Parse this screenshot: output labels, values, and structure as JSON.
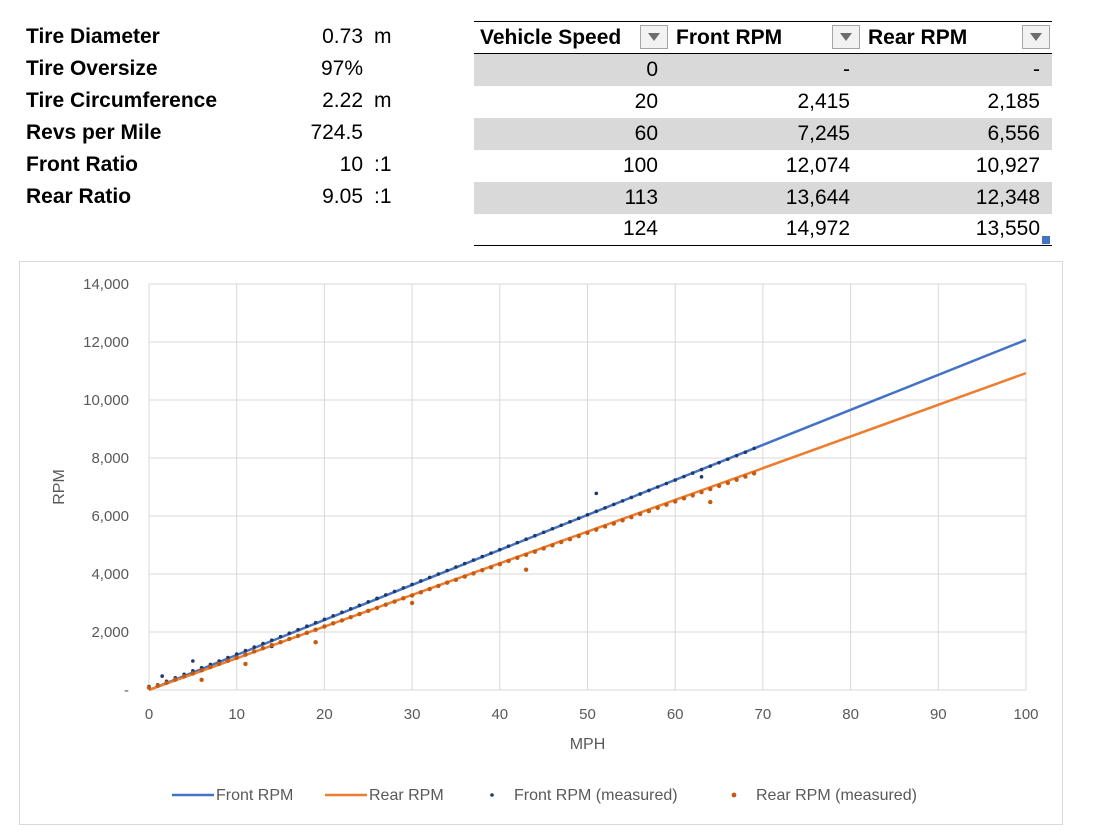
{
  "parameters": [
    {
      "label": "Tire Diameter",
      "value": "0.73",
      "unit": "m"
    },
    {
      "label": "Tire Oversize",
      "value": "97%",
      "unit": ""
    },
    {
      "label": "Tire Circumference",
      "value": "2.22",
      "unit": "m"
    },
    {
      "label": "Revs per Mile",
      "value": "724.5",
      "unit": ""
    },
    {
      "label": "Front Ratio",
      "value": "10",
      "unit": ":1"
    },
    {
      "label": "Rear Ratio",
      "value": "9.05",
      "unit": ":1"
    }
  ],
  "rpm_table": {
    "headers": [
      "Vehicle Speed",
      "Front RPM",
      "Rear RPM"
    ],
    "rows": [
      [
        "0",
        "-",
        "-"
      ],
      [
        "20",
        "2,415",
        "2,185"
      ],
      [
        "60",
        "7,245",
        "6,556"
      ],
      [
        "100",
        "12,074",
        "10,927"
      ],
      [
        "113",
        "13,644",
        "12,348"
      ],
      [
        "124",
        "14,972",
        "13,550"
      ]
    ]
  },
  "colors": {
    "front": "#4472c4",
    "rear": "#ed7d31",
    "front_measured": "#203864",
    "rear_measured": "#c55a11",
    "grid": "#d9d9d9",
    "band": "#d9d9d9"
  },
  "chart_data": {
    "type": "scatter",
    "xlabel": "MPH",
    "ylabel": "RPM",
    "xlim": [
      0,
      100
    ],
    "ylim": [
      0,
      14000
    ],
    "x_ticks": [
      0,
      10,
      20,
      30,
      40,
      50,
      60,
      70,
      80,
      90,
      100
    ],
    "x_tick_labels": [
      "0",
      "10",
      "20",
      "30",
      "40",
      "50",
      "60",
      "70",
      "80",
      "90",
      "100"
    ],
    "y_ticks": [
      0,
      2000,
      4000,
      6000,
      8000,
      10000,
      12000,
      14000
    ],
    "y_tick_labels": [
      "-",
      "2,000",
      "4,000",
      "6,000",
      "8,000",
      "10,000",
      "12,000",
      "14,000"
    ],
    "grid": true,
    "legend_position": "bottom",
    "series": [
      {
        "name": "Front RPM",
        "kind": "line",
        "x": [
          0,
          100
        ],
        "y": [
          0,
          12074
        ]
      },
      {
        "name": "Rear RPM",
        "kind": "line",
        "x": [
          0,
          100
        ],
        "y": [
          0,
          10927
        ]
      },
      {
        "name": "Front RPM (measured)",
        "kind": "scatter",
        "x": [
          0,
          1,
          2,
          3,
          4,
          5,
          6,
          7,
          8,
          9,
          10,
          11,
          12,
          13,
          14,
          15,
          16,
          17,
          18,
          19,
          20,
          21,
          22,
          23,
          24,
          25,
          26,
          27,
          28,
          29,
          30,
          31,
          32,
          33,
          34,
          35,
          36,
          37,
          38,
          39,
          40,
          41,
          42,
          43,
          44,
          45,
          46,
          47,
          48,
          49,
          50,
          51,
          52,
          53,
          54,
          55,
          56,
          57,
          58,
          59,
          60,
          61,
          62,
          63,
          64,
          65,
          66,
          67,
          68,
          69,
          1.5,
          5,
          14,
          26,
          51,
          63
        ],
        "y": [
          120,
          180,
          300,
          420,
          540,
          660,
          770,
          880,
          1000,
          1120,
          1240,
          1360,
          1480,
          1600,
          1720,
          1840,
          1960,
          2080,
          2200,
          2320,
          2440,
          2560,
          2680,
          2800,
          2920,
          3040,
          3160,
          3280,
          3400,
          3520,
          3640,
          3760,
          3880,
          4000,
          4120,
          4240,
          4360,
          4480,
          4600,
          4720,
          4840,
          4960,
          5080,
          5200,
          5320,
          5440,
          5560,
          5680,
          5800,
          5920,
          6040,
          6160,
          6280,
          6400,
          6520,
          6640,
          6760,
          6880,
          7000,
          7120,
          7240,
          7360,
          7480,
          7600,
          7720,
          7840,
          7960,
          8080,
          8200,
          8330,
          480,
          1000,
          1500,
          3150,
          6780,
          7350
        ]
      },
      {
        "name": "Rear RPM (measured)",
        "kind": "scatter",
        "x": [
          0,
          1,
          2,
          3,
          4,
          5,
          6,
          7,
          8,
          9,
          10,
          11,
          12,
          13,
          14,
          15,
          16,
          17,
          18,
          19,
          20,
          21,
          22,
          23,
          24,
          25,
          26,
          27,
          28,
          29,
          30,
          31,
          32,
          33,
          34,
          35,
          36,
          37,
          38,
          39,
          40,
          41,
          42,
          43,
          44,
          45,
          46,
          47,
          48,
          49,
          50,
          51,
          52,
          53,
          54,
          55,
          56,
          57,
          58,
          59,
          60,
          61,
          62,
          63,
          64,
          65,
          66,
          67,
          68,
          69,
          6,
          11,
          19,
          30,
          43,
          64
        ],
        "y": [
          80,
          150,
          250,
          360,
          470,
          570,
          680,
          790,
          900,
          1010,
          1110,
          1220,
          1330,
          1440,
          1550,
          1650,
          1760,
          1870,
          1970,
          2080,
          2190,
          2300,
          2400,
          2510,
          2620,
          2730,
          2830,
          2940,
          3050,
          3160,
          3260,
          3370,
          3480,
          3590,
          3700,
          3800,
          3910,
          4020,
          4130,
          4230,
          4340,
          4450,
          4560,
          4660,
          4770,
          4880,
          4990,
          5100,
          5200,
          5310,
          5420,
          5530,
          5640,
          5740,
          5850,
          5960,
          6070,
          6170,
          6280,
          6390,
          6500,
          6610,
          6710,
          6820,
          6930,
          7040,
          7140,
          7250,
          7360,
          7470,
          350,
          900,
          1650,
          3000,
          4150,
          6480
        ]
      }
    ]
  }
}
